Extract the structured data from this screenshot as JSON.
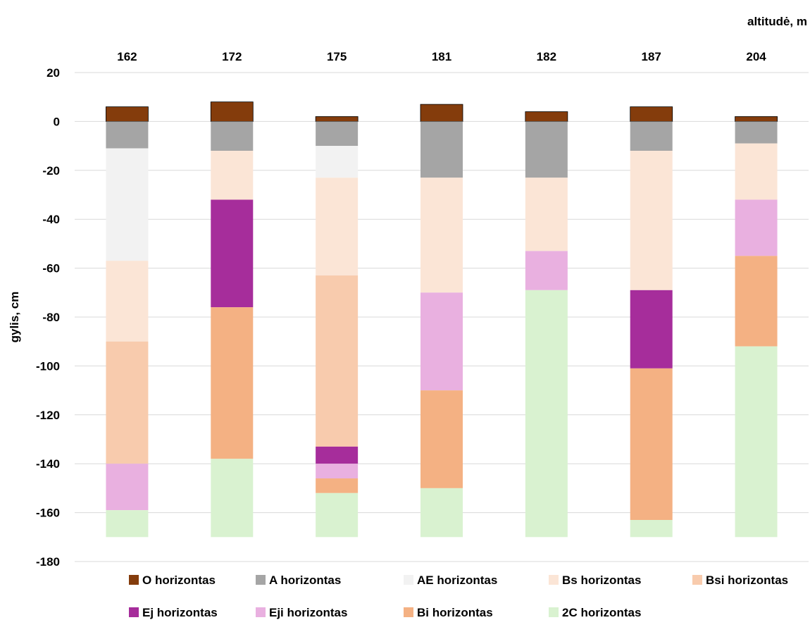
{
  "chart_data": {
    "type": "bar",
    "subtype": "stacked-floating",
    "top_axis_label": "altitudė, m",
    "ylabel": "gylis, cm",
    "xlabel": "",
    "ylim": [
      -180,
      20
    ],
    "yticks": [
      20,
      0,
      -20,
      -40,
      -60,
      -80,
      -100,
      -120,
      -140,
      -160,
      -180
    ],
    "grid": true,
    "legend_position": "bottom",
    "categories": [
      "162",
      "172",
      "175",
      "181",
      "182",
      "187",
      "204"
    ],
    "series": [
      {
        "name": "O horizontas",
        "color": "#843c0c",
        "ranges": [
          [
            0,
            6
          ],
          [
            0,
            8
          ],
          [
            0,
            2
          ],
          [
            0,
            7
          ],
          [
            0,
            4
          ],
          [
            0,
            6
          ],
          [
            0,
            2
          ]
        ]
      },
      {
        "name": "A horizontas",
        "color": "#a5a5a5",
        "ranges": [
          [
            -11,
            0
          ],
          [
            -12,
            0
          ],
          [
            -10,
            0
          ],
          [
            -23,
            0
          ],
          [
            -23,
            0
          ],
          [
            -12,
            0
          ],
          [
            -9,
            0
          ]
        ]
      },
      {
        "name": "AE horizontas",
        "color": "#f2f2f2",
        "ranges": [
          [
            -57,
            -11
          ],
          null,
          [
            -23,
            -10
          ],
          null,
          null,
          null,
          null
        ]
      },
      {
        "name": "Bs horizontas",
        "color": "#fbe5d6",
        "ranges": [
          [
            -90,
            -57
          ],
          [
            -32,
            -12
          ],
          [
            -63,
            -23
          ],
          [
            -70,
            -23
          ],
          [
            -53,
            -23
          ],
          [
            -69,
            -12
          ],
          [
            -32,
            -9
          ]
        ]
      },
      {
        "name": "Bsi horizontas",
        "color": "#f8cbad",
        "ranges": [
          [
            -140,
            -90
          ],
          null,
          [
            -133,
            -63
          ],
          null,
          null,
          null,
          null
        ]
      },
      {
        "name": "Ej horizontas",
        "color": "#a62d9b",
        "ranges": [
          null,
          [
            -76,
            -32
          ],
          [
            -140,
            -133
          ],
          null,
          null,
          [
            -101,
            -69
          ],
          null
        ]
      },
      {
        "name": "Eji horizontas",
        "color": "#e9b0e0",
        "ranges": [
          [
            -159,
            -140
          ],
          null,
          [
            -146,
            -140
          ],
          [
            -110,
            -70
          ],
          [
            -69,
            -53
          ],
          null,
          [
            -55,
            -32
          ]
        ]
      },
      {
        "name": "Bi horizontas",
        "color": "#f4b183",
        "ranges": [
          null,
          [
            -138,
            -76
          ],
          [
            -152,
            -146
          ],
          [
            -150,
            -110
          ],
          null,
          [
            -163,
            -101
          ],
          [
            -92,
            -55
          ]
        ]
      },
      {
        "name": "2C horizontas",
        "color": "#d9f2d0",
        "ranges": [
          [
            -170,
            -159
          ],
          [
            -170,
            -138
          ],
          [
            -170,
            -152
          ],
          [
            -170,
            -150
          ],
          [
            -170,
            -69
          ],
          [
            -170,
            -163
          ],
          [
            -170,
            -92
          ]
        ]
      }
    ],
    "legend_rows": [
      [
        "O horizontas",
        "A horizontas",
        "AE horizontas",
        "Bs horizontas",
        "Bsi horizontas"
      ],
      [
        "Ej horizontas",
        "Eji horizontas",
        "Bi horizontas",
        "2C horizontas"
      ]
    ]
  }
}
